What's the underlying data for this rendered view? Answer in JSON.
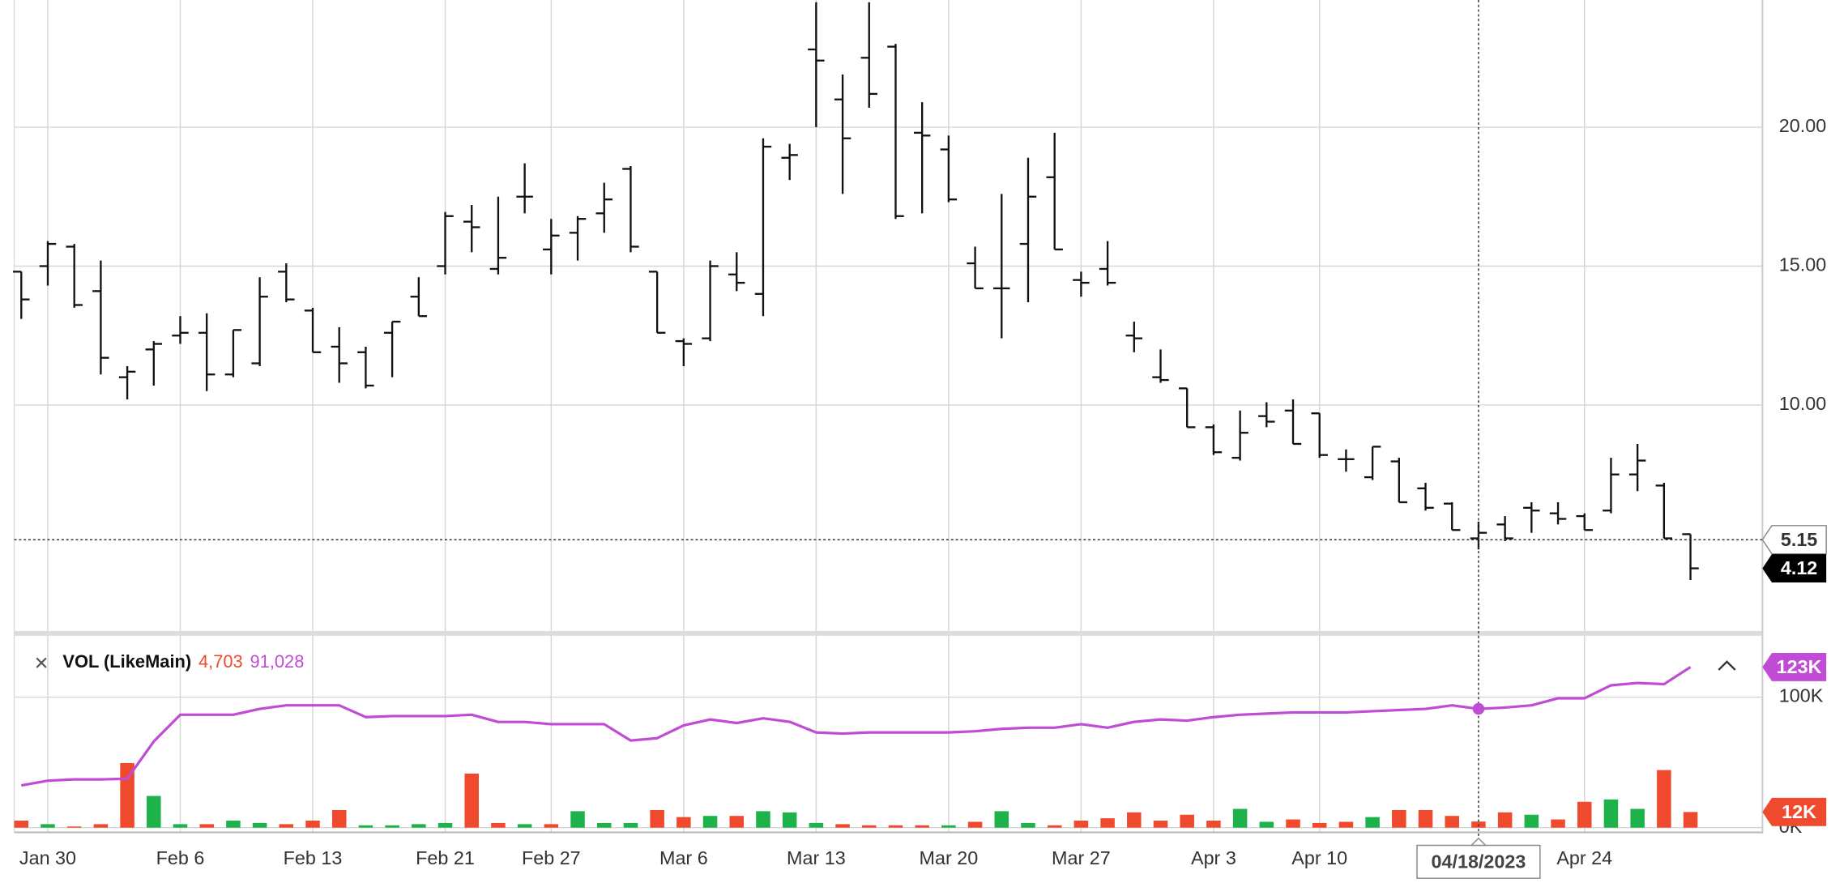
{
  "chart_data": [
    {
      "type": "ohlc",
      "categories": [
        null,
        "Jan 30",
        null,
        null,
        null,
        null,
        "Feb 6",
        null,
        null,
        null,
        null,
        "Feb 13",
        null,
        null,
        null,
        null,
        "Feb 21",
        null,
        null,
        null,
        "Feb 27",
        null,
        null,
        null,
        null,
        "Mar 6",
        null,
        null,
        null,
        null,
        "Mar 13",
        null,
        null,
        null,
        null,
        "Mar 20",
        null,
        null,
        null,
        null,
        "Mar 27",
        null,
        null,
        null,
        null,
        "Apr 3",
        null,
        null,
        null,
        "Apr 10",
        null,
        null,
        null,
        null,
        null,
        null,
        null,
        null,
        null,
        "Apr 24",
        null,
        null,
        null,
        null
      ],
      "open": [
        14.8,
        15.0,
        15.7,
        14.1,
        11.0,
        12.0,
        12.5,
        12.6,
        11.1,
        11.5,
        14.8,
        13.4,
        12.1,
        11.9,
        12.6,
        13.9,
        15.0,
        16.6,
        14.9,
        17.5,
        15.6,
        16.2,
        16.9,
        18.5,
        14.8,
        12.3,
        12.4,
        14.7,
        14.0,
        18.9,
        22.8,
        21.0,
        22.5,
        22.9,
        19.8,
        19.2,
        15.1,
        14.2,
        15.8,
        18.2,
        14.5,
        14.9,
        12.5,
        11.0,
        10.6,
        9.2,
        8.1,
        9.6,
        9.8,
        9.7,
        8.05,
        7.4,
        7.97,
        7.0,
        6.45,
        5.2,
        5.7,
        6.3,
        6.1,
        6.0,
        6.2,
        7.5,
        7.1,
        5.35
      ],
      "high": [
        14.8,
        15.9,
        15.8,
        15.2,
        11.4,
        12.3,
        13.2,
        13.3,
        12.7,
        14.6,
        15.1,
        13.5,
        12.8,
        12.1,
        13.0,
        14.6,
        16.95,
        17.2,
        17.5,
        18.7,
        16.7,
        16.8,
        18.0,
        18.6,
        14.8,
        12.4,
        15.2,
        15.5,
        19.6,
        19.4,
        24.5,
        21.9,
        24.5,
        23.0,
        20.9,
        19.7,
        15.7,
        17.6,
        18.9,
        19.8,
        14.8,
        15.9,
        13.0,
        12.0,
        10.6,
        9.3,
        9.8,
        10.1,
        10.2,
        9.7,
        8.4,
        8.5,
        8.1,
        7.2,
        6.5,
        5.8,
        6.0,
        6.5,
        6.5,
        6.1,
        8.1,
        8.6,
        7.2,
        5.35
      ],
      "low": [
        13.1,
        14.3,
        13.5,
        11.1,
        10.2,
        10.7,
        12.2,
        10.5,
        11.0,
        11.4,
        13.7,
        11.9,
        10.8,
        10.6,
        11.0,
        13.2,
        14.7,
        15.5,
        14.7,
        16.9,
        14.7,
        15.2,
        16.2,
        15.5,
        12.6,
        11.4,
        12.3,
        14.1,
        13.2,
        18.1,
        20.0,
        17.6,
        20.7,
        16.7,
        16.9,
        17.3,
        14.2,
        12.4,
        13.7,
        15.6,
        13.9,
        14.3,
        11.9,
        10.8,
        9.2,
        8.2,
        8.0,
        9.2,
        8.6,
        8.1,
        7.6,
        7.3,
        6.5,
        6.2,
        5.5,
        4.8,
        5.1,
        5.4,
        5.7,
        5.5,
        6.1,
        6.9,
        5.2,
        3.7
      ],
      "close": [
        13.8,
        15.8,
        13.6,
        11.7,
        11.2,
        12.2,
        12.6,
        11.1,
        12.7,
        13.9,
        13.8,
        11.9,
        11.5,
        10.7,
        13.0,
        13.2,
        16.8,
        16.4,
        15.3,
        17.5,
        16.1,
        16.7,
        17.4,
        15.7,
        12.6,
        12.2,
        15.0,
        14.4,
        19.3,
        19.0,
        22.4,
        19.6,
        21.2,
        16.8,
        19.7,
        17.4,
        14.2,
        14.2,
        17.5,
        15.6,
        14.4,
        14.4,
        12.4,
        10.9,
        9.2,
        8.3,
        9.0,
        9.4,
        8.6,
        8.2,
        8.05,
        8.5,
        6.5,
        6.3,
        5.5,
        5.4,
        5.2,
        6.2,
        5.9,
        5.5,
        7.5,
        8.0,
        5.2,
        4.12
      ],
      "color": "#111111",
      "ylim": [
        1.82,
        24.58
      ],
      "yticks": [
        {
          "value": 10,
          "label": "10.00"
        },
        {
          "value": 15,
          "label": "15.00"
        },
        {
          "value": 20,
          "label": "20.00"
        }
      ],
      "grid": true,
      "last_price": 4.12,
      "crosshair": {
        "label": "04/18/2023",
        "x_index": 55,
        "price": 5.15
      }
    },
    {
      "type": "volume",
      "legend": {
        "title": "VOL (LikeMain)",
        "values": [
          {
            "value": 4703,
            "label": "4,703",
            "color": "#f04a2e"
          },
          {
            "value": 91028,
            "label": "91,028",
            "color": "#c04bd4"
          }
        ]
      },
      "values": [
        5400,
        2700,
        900,
        2700,
        49500,
        24300,
        2700,
        2700,
        5400,
        3600,
        2700,
        5400,
        13500,
        1800,
        1800,
        2700,
        3600,
        41400,
        3600,
        2700,
        2700,
        12600,
        3600,
        3600,
        13500,
        8100,
        9000,
        9000,
        12600,
        11700,
        3600,
        2700,
        1800,
        1800,
        1800,
        1800,
        4500,
        12600,
        3600,
        1800,
        5400,
        7200,
        11700,
        5400,
        9900,
        5400,
        14400,
        4500,
        6300,
        3600,
        4500,
        8100,
        13500,
        13500,
        9000,
        4703,
        11700,
        9900,
        6300,
        19800,
        21600,
        14400,
        44100,
        12000
      ],
      "colors": [
        "#f04a2e",
        "#1db24a",
        "#f04a2e",
        "#f04a2e",
        "#f04a2e",
        "#1db24a",
        "#1db24a",
        "#f04a2e",
        "#1db24a",
        "#1db24a",
        "#f04a2e",
        "#f04a2e",
        "#f04a2e",
        "#1db24a",
        "#1db24a",
        "#1db24a",
        "#1db24a",
        "#f04a2e",
        "#f04a2e",
        "#1db24a",
        "#f04a2e",
        "#1db24a",
        "#1db24a",
        "#1db24a",
        "#f04a2e",
        "#f04a2e",
        "#1db24a",
        "#f04a2e",
        "#1db24a",
        "#1db24a",
        "#1db24a",
        "#f04a2e",
        "#f04a2e",
        "#f04a2e",
        "#f04a2e",
        "#1db24a",
        "#f04a2e",
        "#1db24a",
        "#1db24a",
        "#f04a2e",
        "#f04a2e",
        "#f04a2e",
        "#f04a2e",
        "#f04a2e",
        "#f04a2e",
        "#f04a2e",
        "#1db24a",
        "#1db24a",
        "#f04a2e",
        "#f04a2e",
        "#f04a2e",
        "#1db24a",
        "#f04a2e",
        "#f04a2e",
        "#f04a2e",
        "#f04a2e",
        "#f04a2e",
        "#1db24a",
        "#f04a2e",
        "#f04a2e",
        "#1db24a",
        "#1db24a",
        "#f04a2e",
        "#f04a2e"
      ],
      "line": {
        "color": "#c04bd4",
        "values": [
          32400,
          36000,
          37000,
          37000,
          37500,
          66000,
          86500,
          86500,
          86500,
          91000,
          93700,
          93700,
          93700,
          84700,
          85500,
          85500,
          85500,
          86500,
          81000,
          81000,
          79300,
          79300,
          79300,
          66700,
          68500,
          78400,
          82900,
          80200,
          83800,
          81100,
          73000,
          72100,
          73000,
          73000,
          73000,
          73000,
          73900,
          75700,
          76600,
          76600,
          79300,
          76600,
          81100,
          82900,
          82000,
          84700,
          86500,
          87400,
          88300,
          88300,
          88300,
          89200,
          90100,
          91000,
          93700,
          91028,
          92000,
          93700,
          99100,
          99100,
          109000,
          110800,
          109900,
          123000
        ]
      },
      "ylim": [
        0,
        147000
      ],
      "yticks": [
        {
          "value": 0,
          "label": "0K"
        },
        {
          "value": 100000,
          "label": "100K"
        }
      ],
      "badges": [
        {
          "value": 123000,
          "label": "123K",
          "color": "#c04bd4"
        },
        {
          "value": 12000,
          "label": "12K",
          "color": "#f04a2e"
        }
      ]
    }
  ]
}
